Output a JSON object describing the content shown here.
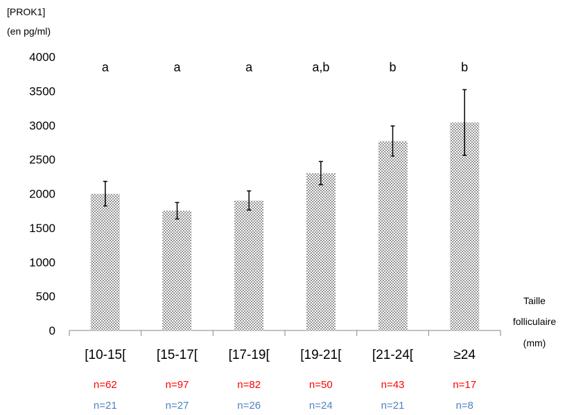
{
  "chart_data": {
    "type": "bar",
    "ylabel_lines": [
      "[PROK1]",
      "(en pg/ml)"
    ],
    "xlabel_lines": [
      "Taille",
      "folliculaire",
      "(mm)"
    ],
    "categories": [
      "[10-15[",
      "[15-17[",
      "[17-19[",
      "[19-21[",
      "[21-24[",
      "≥24"
    ],
    "values": [
      2000,
      1750,
      1900,
      2300,
      2770,
      3040
    ],
    "error": [
      180,
      120,
      140,
      170,
      220,
      480
    ],
    "significance": [
      "a",
      "a",
      "a",
      "a,b",
      "b",
      "b"
    ],
    "n_group1": [
      "n=62",
      "n=97",
      "n=82",
      "n=50",
      "n=43",
      "n=17"
    ],
    "n_group2": [
      "n=21",
      "n=27",
      "n=26",
      "n=24",
      "n=21",
      "n=8"
    ],
    "yticks": [
      0,
      500,
      1000,
      1500,
      2000,
      2500,
      3000,
      3500,
      4000
    ],
    "ylim": [
      0,
      4000
    ],
    "grid": false,
    "colors": {
      "bar_dots": "#000000",
      "n_group1": "#ff0000",
      "n_group2": "#4f81bd"
    }
  }
}
